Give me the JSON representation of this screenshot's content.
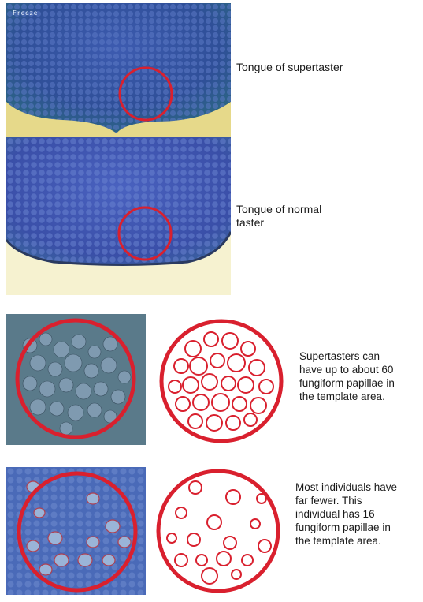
{
  "images": {
    "top_photo": {
      "overlay_text": "Freeze",
      "caption": "Tongue of supertaster"
    },
    "middle_photo": {
      "caption_line1": "Tongue of normal",
      "caption_line2": "taster"
    }
  },
  "comparisons": [
    {
      "caption_lines": [
        "Supertasters can",
        "have up to about 60",
        "fungiform papillae in",
        "the template area."
      ]
    },
    {
      "caption_lines": [
        "Most individuals have",
        "far fewer.  This",
        "individual has 16",
        "fungiform papillae in",
        "the template area."
      ]
    }
  ],
  "colors": {
    "template_circle": "#d9202e",
    "tongue_blue": "#4a5fb0",
    "tongue_edge": "#e8e0a0"
  }
}
